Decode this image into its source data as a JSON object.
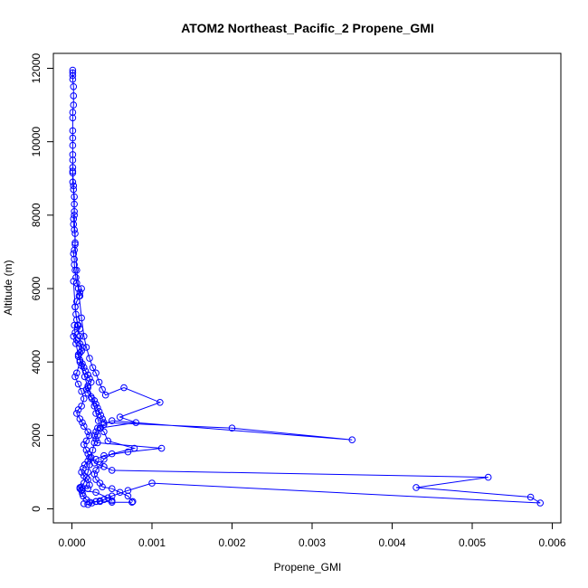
{
  "chart_data": {
    "type": "line",
    "title": "ATOM2 Northeast_Pacific_2 Propene_GMI",
    "xlabel": "Propene_GMI",
    "ylabel": "Altitude (m)",
    "xlim": [
      0,
      0.006
    ],
    "ylim": [
      0,
      12000
    ],
    "x_ticks": [
      0,
      0.001,
      0.002,
      0.003,
      0.004,
      0.005,
      0.006
    ],
    "x_tick_labels": [
      "0.000",
      "0.001",
      "0.002",
      "0.003",
      "0.004",
      "0.005",
      "0.006"
    ],
    "y_ticks": [
      0,
      2000,
      4000,
      6000,
      8000,
      10000,
      12000
    ],
    "y_tick_labels": [
      "0",
      "2000",
      "4000",
      "6000",
      "8000",
      "10000",
      "12000"
    ],
    "grid": false,
    "marker": "open-circle",
    "series": [
      {
        "color": "#0000ff",
        "points": [
          [
            1e-05,
            11950
          ],
          [
            1e-05,
            11880
          ],
          [
            1e-05,
            11800
          ],
          [
            1e-05,
            11700
          ],
          [
            2e-05,
            11500
          ],
          [
            2e-05,
            11250
          ],
          [
            2e-05,
            11000
          ],
          [
            1e-05,
            10800
          ],
          [
            1e-05,
            10650
          ],
          [
            1e-05,
            10300
          ],
          [
            1e-05,
            10100
          ],
          [
            1e-05,
            9900
          ],
          [
            1e-05,
            9650
          ],
          [
            1e-05,
            9500
          ],
          [
            1e-05,
            9300
          ],
          [
            1e-05,
            9150
          ],
          [
            1e-05,
            8900
          ],
          [
            2e-05,
            8700
          ],
          [
            3e-05,
            8500
          ],
          [
            3e-05,
            8300
          ],
          [
            3e-05,
            8100
          ],
          [
            2e-05,
            7900
          ],
          [
            2e-05,
            7750
          ],
          [
            3e-05,
            7600
          ],
          [
            4e-05,
            7500
          ],
          [
            4e-05,
            7250
          ],
          [
            3e-05,
            7050
          ],
          [
            2e-05,
            6950
          ],
          [
            3e-05,
            6800
          ],
          [
            3e-05,
            6650
          ],
          [
            4e-05,
            6500
          ],
          [
            5e-05,
            6300
          ],
          [
            6e-05,
            6150
          ],
          [
            8e-05,
            6000
          ],
          [
            0.0001,
            5900
          ],
          [
            0.00012,
            6000
          ],
          [
            0.0001,
            5800
          ],
          [
            6e-05,
            5650
          ],
          [
            4e-05,
            5500
          ],
          [
            5e-05,
            5300
          ],
          [
            6e-05,
            5150
          ],
          [
            8e-05,
            5000
          ],
          [
            0.0001,
            4900
          ],
          [
            4e-05,
            4800
          ],
          [
            2e-05,
            4700
          ],
          [
            6e-05,
            4600
          ],
          [
            0.0001,
            4500
          ],
          [
            0.00013,
            4400
          ],
          [
            0.0001,
            4250
          ],
          [
            8e-05,
            4150
          ],
          [
            0.0001,
            4050
          ],
          [
            0.00013,
            3950
          ],
          [
            0.00015,
            3850
          ],
          [
            0.00017,
            3750
          ],
          [
            0.0002,
            3650
          ],
          [
            0.00022,
            3550
          ],
          [
            0.00024,
            3450
          ],
          [
            0.0002,
            3350
          ],
          [
            0.00018,
            3250
          ],
          [
            0.0002,
            3150
          ],
          [
            0.00024,
            3050
          ],
          [
            0.00028,
            2950
          ],
          [
            0.0003,
            2850
          ],
          [
            0.00032,
            2750
          ],
          [
            0.00034,
            2650
          ],
          [
            0.00036,
            2550
          ],
          [
            0.00038,
            2450
          ],
          [
            0.0004,
            2350
          ],
          [
            0.002,
            2200
          ],
          [
            0.0035,
            1880
          ],
          [
            0.0005,
            2400
          ],
          [
            0.0004,
            2300
          ],
          [
            0.00032,
            2200
          ],
          [
            0.0003,
            2100
          ],
          [
            0.00028,
            2000
          ],
          [
            0.0003,
            1900
          ],
          [
            0.00032,
            1800
          ],
          [
            0.00112,
            1650
          ],
          [
            0.0007,
            1550
          ],
          [
            0.0004,
            1450
          ],
          [
            0.0003,
            1350
          ],
          [
            0.00028,
            1250
          ],
          [
            0.0004,
            1150
          ],
          [
            0.0005,
            1050
          ],
          [
            0.0052,
            860
          ],
          [
            0.0043,
            580
          ],
          [
            0.00573,
            320
          ],
          [
            0.00585,
            160
          ],
          [
            0.001,
            700
          ],
          [
            0.0007,
            500
          ],
          [
            0.0005,
            350
          ],
          [
            0.0004,
            250
          ],
          [
            0.00035,
            200
          ],
          [
            0.0003,
            200
          ],
          [
            0.00025,
            160
          ],
          [
            0.0002,
            120
          ],
          [
            0.00015,
            140
          ]
        ]
      },
      {
        "color": "#0000ff",
        "points": [
          [
            1e-05,
            9200
          ],
          [
            2e-05,
            8800
          ],
          [
            3e-05,
            8000
          ],
          [
            4e-05,
            7200
          ],
          [
            6e-05,
            6500
          ],
          [
            9e-05,
            5800
          ],
          [
            0.00012,
            5200
          ],
          [
            0.00015,
            4700
          ],
          [
            0.00018,
            4400
          ],
          [
            0.00022,
            4100
          ],
          [
            0.00026,
            3850
          ],
          [
            0.0003,
            3700
          ],
          [
            0.00034,
            3450
          ],
          [
            0.00038,
            3250
          ],
          [
            0.00042,
            3100
          ],
          [
            0.00065,
            3300
          ],
          [
            0.0011,
            2900
          ],
          [
            0.0006,
            2500
          ],
          [
            0.0008,
            2350
          ],
          [
            0.00035,
            2200
          ],
          [
            0.0004,
            2100
          ],
          [
            0.00045,
            1850
          ],
          [
            0.00078,
            1650
          ],
          [
            0.0005,
            1500
          ],
          [
            0.0004,
            1350
          ],
          [
            0.00035,
            1200
          ],
          [
            0.0003,
            1050
          ],
          [
            0.00028,
            950
          ],
          [
            0.0003,
            800
          ],
          [
            0.00035,
            700
          ],
          [
            0.00038,
            600
          ],
          [
            0.0005,
            550
          ],
          [
            0.0006,
            450
          ],
          [
            0.0007,
            350
          ],
          [
            0.00076,
            200
          ]
        ]
      },
      {
        "color": "#0000ff",
        "points": [
          [
            2e-05,
            6200
          ],
          [
            4e-05,
            5500
          ],
          [
            7e-05,
            5000
          ],
          [
            0.0001,
            4700
          ],
          [
            0.00012,
            4300
          ],
          [
            0.0001,
            4000
          ],
          [
            6e-05,
            3700
          ],
          [
            4e-05,
            3600
          ],
          [
            8e-05,
            3400
          ],
          [
            0.00012,
            3200
          ],
          [
            0.00015,
            3000
          ],
          [
            0.00012,
            2800
          ],
          [
            8e-05,
            2700
          ],
          [
            6e-05,
            2600
          ],
          [
            0.0001,
            2450
          ],
          [
            0.00013,
            2350
          ],
          [
            0.00015,
            2250
          ],
          [
            0.0002,
            2100
          ],
          [
            0.00022,
            2000
          ],
          [
            0.00018,
            1850
          ],
          [
            0.00015,
            1750
          ],
          [
            0.00018,
            1600
          ],
          [
            0.0002,
            1500
          ],
          [
            0.00022,
            1400
          ],
          [
            0.0002,
            1300
          ],
          [
            0.00016,
            1200
          ],
          [
            0.00014,
            1100
          ],
          [
            0.00012,
            1000
          ],
          [
            0.00015,
            900
          ],
          [
            0.0002,
            800
          ],
          [
            0.00022,
            650
          ],
          [
            0.0002,
            550
          ],
          [
            0.0001,
            580
          ],
          [
            0.00012,
            520
          ],
          [
            0.00013,
            420
          ],
          [
            0.00014,
            350
          ],
          [
            0.00018,
            250
          ],
          [
            0.00022,
            180
          ],
          [
            0.0003,
            200
          ],
          [
            0.00035,
            220
          ],
          [
            0.0005,
            180
          ],
          [
            0.00075,
            180
          ]
        ]
      },
      {
        "color": "#0000ff",
        "points": [
          [
            3e-05,
            5000
          ],
          [
            5e-05,
            4500
          ],
          [
            8e-05,
            4200
          ],
          [
            0.00012,
            3900
          ],
          [
            0.00016,
            3600
          ],
          [
            0.0002,
            3300
          ],
          [
            0.00025,
            3000
          ],
          [
            0.00028,
            2800
          ],
          [
            0.0003,
            2600
          ],
          [
            0.00033,
            2400
          ],
          [
            0.00036,
            2200
          ],
          [
            0.00032,
            2000
          ],
          [
            0.00028,
            1800
          ],
          [
            0.00026,
            1600
          ],
          [
            0.00024,
            1400
          ],
          [
            0.00022,
            1200
          ],
          [
            0.0002,
            1000
          ],
          [
            0.00018,
            850
          ],
          [
            0.00015,
            700
          ],
          [
            0.00012,
            600
          ],
          [
            0.0001,
            550
          ],
          [
            0.00012,
            500
          ],
          [
            0.0003,
            450
          ],
          [
            0.00045,
            300
          ],
          [
            0.0005,
            220
          ]
        ]
      }
    ]
  }
}
